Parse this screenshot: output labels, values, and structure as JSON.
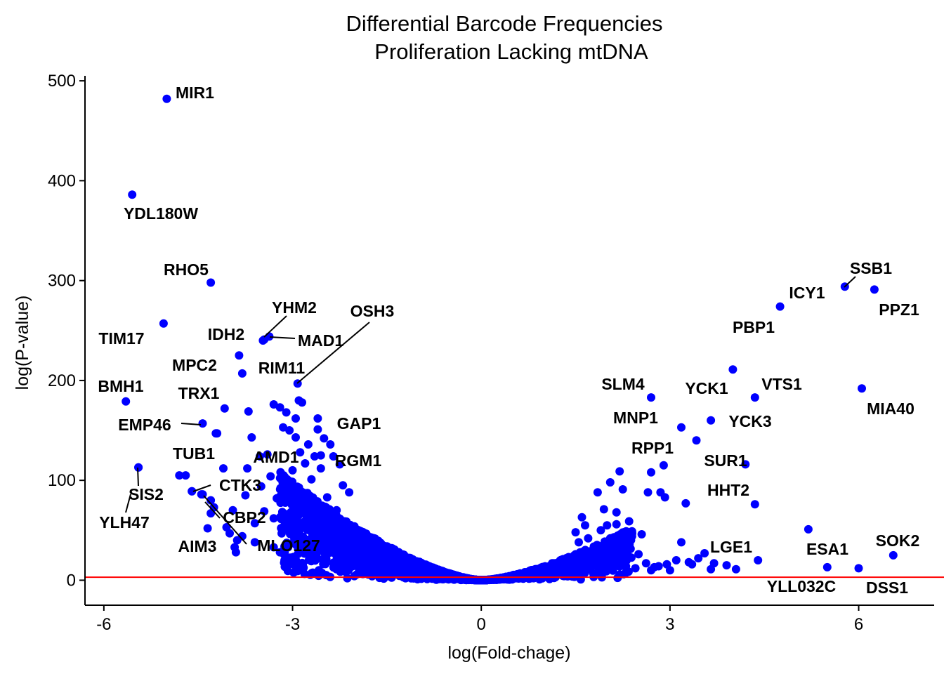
{
  "chart_data": {
    "type": "scatter",
    "title": "Differential Barcode Frequencies",
    "subtitle": "Proliferation Lacking mtDNA",
    "xlabel": "log(Fold-chage)",
    "ylabel": "log(P-value)",
    "xlim": [
      -6.3,
      7.2
    ],
    "ylim": [
      -25,
      505
    ],
    "xticks": [
      -6,
      -3,
      0,
      3,
      6
    ],
    "xtick_labels": [
      "-6",
      "-3",
      "0",
      "3",
      "6"
    ],
    "yticks": [
      0,
      100,
      200,
      300,
      400,
      500
    ],
    "ytick_labels": [
      "0",
      "100",
      "200",
      "300",
      "400",
      "500"
    ],
    "grid": false,
    "point_color": "#0000ff",
    "threshold": {
      "y": 3,
      "color": "#ff0000"
    },
    "labeled_points": [
      {
        "label": "MIR1",
        "x": -5.0,
        "y": 482
      },
      {
        "label": "YDL180W",
        "x": -5.55,
        "y": 386
      },
      {
        "label": "RHO5",
        "x": -4.3,
        "y": 298
      },
      {
        "label": "TIM17",
        "x": -5.05,
        "y": 257
      },
      {
        "label": "YHM2",
        "x": -3.47,
        "y": 240
      },
      {
        "label": "IDH2",
        "x": -3.45,
        "y": 241
      },
      {
        "label": "MAD1",
        "x": -3.37,
        "y": 244
      },
      {
        "label": "OSH3",
        "x": -2.92,
        "y": 197
      },
      {
        "label": "MPC2",
        "x": -3.85,
        "y": 225
      },
      {
        "label": "RIM11",
        "x": -3.8,
        "y": 207
      },
      {
        "label": "BMH1",
        "x": -5.65,
        "y": 179
      },
      {
        "label": "TRX1",
        "x": -4.08,
        "y": 172
      },
      {
        "label": "EMP46",
        "x": -4.43,
        "y": 157
      },
      {
        "label": "GAP1",
        "x": -2.6,
        "y": 162
      },
      {
        "label": "TUB1",
        "x": -4.22,
        "y": 147
      },
      {
        "label": "AMD1",
        "x": -3.52,
        "y": 124
      },
      {
        "label": "RGM1",
        "x": -2.55,
        "y": 125
      },
      {
        "label": "SIS2",
        "x": -5.45,
        "y": 113
      },
      {
        "label": "YLH47",
        "x": -4.8,
        "y": 105
      },
      {
        "label": "CTK3",
        "x": -4.6,
        "y": 89
      },
      {
        "label": "CBP2",
        "x": -4.25,
        "y": 73
      },
      {
        "label": "MLO127",
        "x": -4.43,
        "y": 86
      },
      {
        "label": "AIM3",
        "x": -3.9,
        "y": 28
      },
      {
        "label": "SSB1",
        "x": 5.78,
        "y": 294
      },
      {
        "label": "ICY1",
        "x": 4.75,
        "y": 274
      },
      {
        "label": "PPZ1",
        "x": 6.25,
        "y": 291
      },
      {
        "label": "PBP1",
        "x": 4.0,
        "y": 211
      },
      {
        "label": "SLM4",
        "x": 2.7,
        "y": 183
      },
      {
        "label": "YCK1",
        "x": 3.65,
        "y": 160
      },
      {
        "label": "VTS1",
        "x": 4.35,
        "y": 183
      },
      {
        "label": "MIA40",
        "x": 6.05,
        "y": 192
      },
      {
        "label": "MNP1",
        "x": 3.18,
        "y": 153
      },
      {
        "label": "YCK3",
        "x": 3.42,
        "y": 140
      },
      {
        "label": "RPP1",
        "x": 2.9,
        "y": 115
      },
      {
        "label": "SUR1",
        "x": 4.2,
        "y": 116
      },
      {
        "label": "HHT2",
        "x": 4.35,
        "y": 76
      },
      {
        "label": "LGE1",
        "x": 4.4,
        "y": 20
      },
      {
        "label": "ESA1",
        "x": 5.2,
        "y": 51
      },
      {
        "label": "SOK2",
        "x": 6.55,
        "y": 25
      },
      {
        "label": "YLL032C",
        "x": 5.5,
        "y": 13
      },
      {
        "label": "DSS1",
        "x": 6.0,
        "y": 12
      }
    ],
    "extra_points": [
      [
        -4.6,
        89
      ],
      [
        -4.45,
        86
      ],
      [
        -4.3,
        80
      ],
      [
        -4.3,
        67
      ],
      [
        -4.35,
        52
      ],
      [
        -4.05,
        53
      ],
      [
        -3.95,
        70
      ],
      [
        -3.88,
        40
      ],
      [
        -3.6,
        57
      ],
      [
        -3.45,
        69
      ],
      [
        -3.25,
        82
      ],
      [
        -3.1,
        94
      ],
      [
        -3.0,
        110
      ],
      [
        -3.2,
        173
      ],
      [
        -3.3,
        176
      ],
      [
        -3.1,
        168
      ],
      [
        -2.95,
        162
      ],
      [
        -3.15,
        153
      ],
      [
        -3.05,
        150
      ],
      [
        -2.95,
        143
      ],
      [
        -2.88,
        128
      ],
      [
        -2.75,
        136
      ],
      [
        -2.6,
        151
      ],
      [
        -2.5,
        142
      ],
      [
        -2.4,
        136
      ],
      [
        -3.7,
        169
      ],
      [
        -3.65,
        143
      ],
      [
        -3.72,
        112
      ],
      [
        -3.5,
        94
      ],
      [
        -3.35,
        104
      ],
      [
        -3.92,
        33
      ],
      [
        -4.1,
        112
      ],
      [
        -4.7,
        105
      ],
      [
        -5.45,
        113
      ],
      [
        -4.2,
        147
      ],
      [
        -3.4,
        126
      ],
      [
        -2.9,
        180
      ],
      [
        -2.85,
        178
      ],
      [
        -2.2,
        95
      ],
      [
        -2.1,
        88
      ],
      [
        -2.3,
        70
      ],
      [
        -3.8,
        44
      ],
      [
        -3.6,
        38
      ],
      [
        -3.3,
        33
      ],
      [
        -3.2,
        28
      ],
      [
        -4.0,
        47
      ],
      [
        -3.75,
        85
      ],
      [
        -2.7,
        101
      ],
      [
        -2.8,
        117
      ],
      [
        -2.65,
        124
      ],
      [
        -2.55,
        112
      ],
      [
        -2.35,
        124
      ],
      [
        -2.25,
        116
      ],
      [
        -3.0,
        62
      ],
      [
        -3.3,
        62
      ],
      [
        -2.45,
        83
      ],
      [
        1.85,
        88
      ],
      [
        1.95,
        71
      ],
      [
        2.05,
        98
      ],
      [
        2.15,
        68
      ],
      [
        2.2,
        109
      ],
      [
        2.25,
        91
      ],
      [
        2.0,
        55
      ],
      [
        1.9,
        50
      ],
      [
        2.05,
        42
      ],
      [
        2.35,
        31
      ],
      [
        2.5,
        26
      ],
      [
        2.62,
        17
      ],
      [
        2.82,
        14
      ],
      [
        2.95,
        16
      ],
      [
        3.1,
        20
      ],
      [
        3.3,
        18
      ],
      [
        3.45,
        22
      ],
      [
        3.55,
        27
      ],
      [
        3.7,
        17
      ],
      [
        3.9,
        15
      ],
      [
        4.05,
        11
      ],
      [
        2.85,
        88
      ],
      [
        2.65,
        88
      ],
      [
        2.55,
        46
      ],
      [
        2.2,
        41
      ],
      [
        2.45,
        12
      ],
      [
        2.7,
        10
      ],
      [
        3.18,
        38
      ],
      [
        3.25,
        77
      ],
      [
        2.7,
        108
      ],
      [
        2.92,
        83
      ],
      [
        1.7,
        42
      ],
      [
        1.6,
        63
      ],
      [
        1.55,
        38
      ],
      [
        1.75,
        28
      ],
      [
        2.1,
        18
      ],
      [
        2.3,
        14
      ],
      [
        1.95,
        24
      ],
      [
        2.75,
        13
      ],
      [
        3.0,
        10
      ],
      [
        3.35,
        16
      ],
      [
        3.65,
        11
      ],
      [
        1.5,
        48
      ],
      [
        1.65,
        55
      ],
      [
        2.15,
        56
      ],
      [
        2.35,
        59
      ],
      [
        1.8,
        31
      ],
      [
        2.25,
        37
      ]
    ],
    "dense_cloud": {
      "form": "y = 19 * |x|^1.5, denser near x = 0",
      "x_range": [
        -3.2,
        2.4
      ],
      "points": 2500
    }
  }
}
